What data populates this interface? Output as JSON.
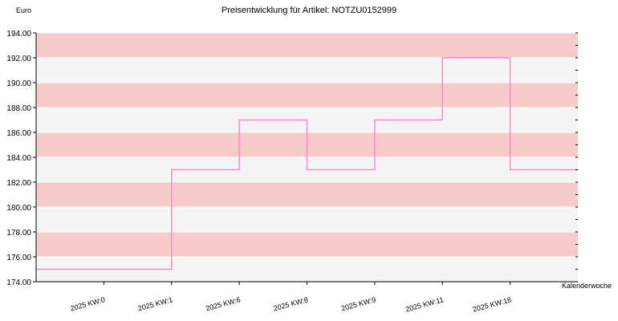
{
  "chart_data": {
    "type": "line",
    "title": "Preisentwicklung für Artikel: NOTZU0152999",
    "ylabel": "Euro",
    "xlabel": "Kalenderwoche",
    "ylim": [
      174.0,
      194.0
    ],
    "yticks": [
      "174.00",
      "176.00",
      "178.00",
      "180.00",
      "182.00",
      "184.00",
      "186.00",
      "188.00",
      "190.00",
      "192.00",
      "194.00"
    ],
    "ytick_values": [
      174,
      176,
      178,
      180,
      182,
      184,
      186,
      188,
      190,
      192,
      194
    ],
    "categories": [
      "2025 KW:0",
      "2025 KW:1",
      "2025 KW:6",
      "2025 KW:8",
      "2025 KW:9",
      "2025 KW:11",
      "2025 KW:18"
    ],
    "series": [
      {
        "values": [
          175,
          183,
          187,
          183,
          187,
          192,
          183
        ]
      }
    ],
    "step": true,
    "grid": true,
    "band_colors": [
      "#f8cbcb",
      "#f5f5f5"
    ],
    "line_color": "#ff88cc",
    "axis_color": "#000000"
  }
}
